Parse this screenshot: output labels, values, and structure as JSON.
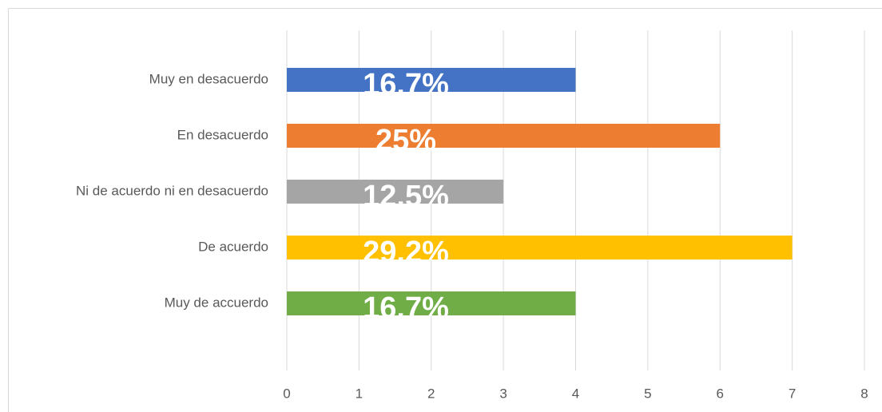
{
  "chart_data": {
    "type": "bar",
    "orientation": "horizontal",
    "categories": [
      "Muy en desacuerdo",
      "En desacuerdo",
      "Ni de acuerdo ni en desacuerdo",
      "De acuerdo",
      "Muy de accuerdo"
    ],
    "values": [
      4,
      6,
      3,
      7,
      4
    ],
    "colors": [
      "#4472c4",
      "#ed7d31",
      "#a5a5a5",
      "#ffc000",
      "#70ad47"
    ],
    "share_labels": [
      "16.7%",
      "25%",
      "12.5%",
      "29.2%",
      "16.7%"
    ],
    "xlim": [
      0,
      8
    ],
    "xticks": [
      0,
      1,
      2,
      3,
      4,
      5,
      6,
      7,
      8
    ],
    "grid": true
  }
}
